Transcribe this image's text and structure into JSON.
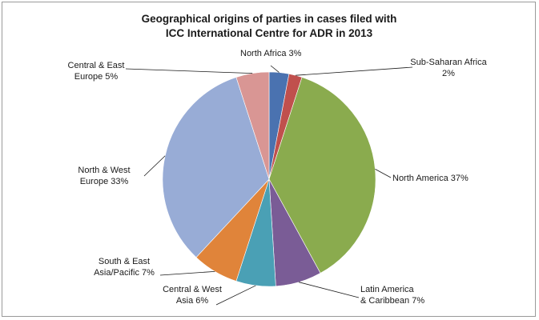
{
  "chart_data": {
    "type": "pie",
    "title_lines": [
      "Geographical origins of parties in cases filed with",
      "ICC International Centre for ADR in 2013"
    ],
    "slices": [
      {
        "key": "north_africa",
        "label_lines": [
          "North Africa 3%"
        ],
        "value": 3,
        "color": "#4a72b0"
      },
      {
        "key": "sub_saharan_africa",
        "label_lines": [
          "Sub-Saharan Africa",
          "2%"
        ],
        "value": 2,
        "color": "#c0504d"
      },
      {
        "key": "north_america",
        "label_lines": [
          "North America 37%"
        ],
        "value": 37,
        "color": "#8aab4e"
      },
      {
        "key": "latin_america",
        "label_lines": [
          "Latin America",
          "& Caribbean 7%"
        ],
        "value": 7,
        "color": "#7a5c96"
      },
      {
        "key": "central_west_asia",
        "label_lines": [
          "Central & West",
          "Asia 6%"
        ],
        "value": 6,
        "color": "#4aa0b5"
      },
      {
        "key": "south_east_asia",
        "label_lines": [
          "South & East",
          "Asia/Pacific 7%"
        ],
        "value": 7,
        "color": "#e0843a"
      },
      {
        "key": "north_west_europe",
        "label_lines": [
          "North & West",
          "Europe 33%"
        ],
        "value": 33,
        "color": "#98acd6"
      },
      {
        "key": "central_east_europe",
        "label_lines": [
          "Central & East",
          "Europe 5%"
        ],
        "value": 5,
        "color": "#d99694"
      }
    ]
  }
}
